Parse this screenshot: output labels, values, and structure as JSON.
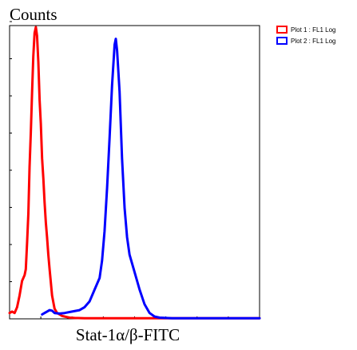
{
  "chart_data": {
    "type": "line",
    "ylabel": "Counts",
    "xlabel": "Stat-1α/β-FITC",
    "x_scale": "log",
    "grid": false,
    "legend_position": "top-right",
    "legend": [
      {
        "label": "Plot 1 : FL1 Log",
        "color": "#ff0000"
      },
      {
        "label": "Plot 2 : FL1 Log",
        "color": "#0000ff"
      }
    ],
    "series": [
      {
        "name": "Plot 1 : FL1 Log",
        "color": "#ff0000",
        "x": [
          0.0,
          0.01,
          0.02,
          0.03,
          0.04,
          0.05,
          0.06,
          0.065,
          0.07,
          0.075,
          0.08,
          0.085,
          0.09,
          0.095,
          0.1,
          0.105,
          0.11,
          0.115,
          0.12,
          0.125,
          0.13,
          0.135,
          0.14,
          0.145,
          0.15,
          0.155,
          0.16,
          0.17,
          0.18,
          0.19,
          0.2,
          0.21,
          0.22,
          0.23,
          0.24,
          0.26,
          0.3,
          0.4,
          0.6,
          1.0
        ],
        "y": [
          0.02,
          0.025,
          0.02,
          0.04,
          0.08,
          0.13,
          0.15,
          0.17,
          0.26,
          0.36,
          0.52,
          0.64,
          0.78,
          0.9,
          0.98,
          1.0,
          0.97,
          0.88,
          0.75,
          0.67,
          0.55,
          0.48,
          0.4,
          0.33,
          0.28,
          0.22,
          0.17,
          0.08,
          0.035,
          0.02,
          0.015,
          0.01,
          0.008,
          0.006,
          0.004,
          0.003,
          0.002,
          0.002,
          0.002,
          0.002
        ]
      },
      {
        "name": "Plot 2 : FL1 Log",
        "color": "#0000ff",
        "x": [
          0.13,
          0.14,
          0.15,
          0.16,
          0.17,
          0.18,
          0.2,
          0.22,
          0.25,
          0.28,
          0.3,
          0.32,
          0.34,
          0.36,
          0.37,
          0.38,
          0.39,
          0.4,
          0.41,
          0.415,
          0.42,
          0.425,
          0.43,
          0.44,
          0.45,
          0.46,
          0.47,
          0.48,
          0.5,
          0.52,
          0.54,
          0.56,
          0.58,
          0.6,
          0.65,
          0.75,
          1.0
        ],
        "y": [
          0.015,
          0.02,
          0.025,
          0.03,
          0.028,
          0.02,
          0.018,
          0.02,
          0.025,
          0.03,
          0.04,
          0.06,
          0.1,
          0.14,
          0.2,
          0.3,
          0.45,
          0.62,
          0.8,
          0.87,
          0.94,
          0.96,
          0.92,
          0.78,
          0.55,
          0.38,
          0.28,
          0.22,
          0.16,
          0.1,
          0.05,
          0.02,
          0.008,
          0.004,
          0.002,
          0.002,
          0.002
        ]
      }
    ]
  }
}
